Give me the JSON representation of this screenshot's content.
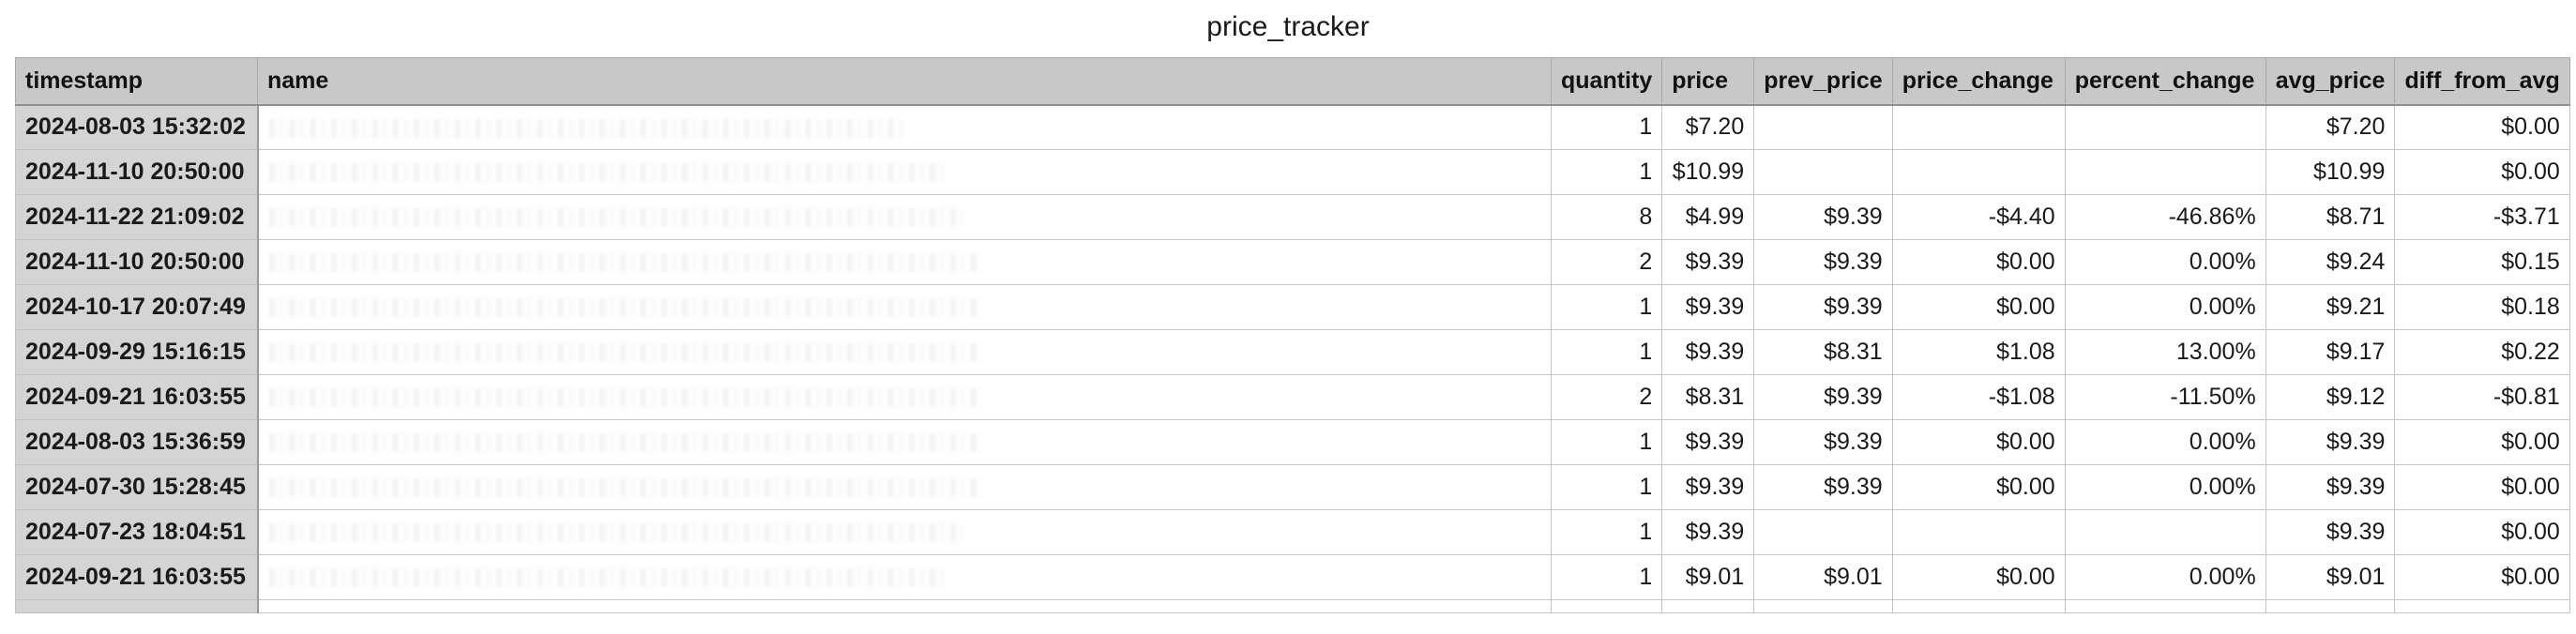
{
  "sheet": {
    "title": "price_tracker"
  },
  "table": {
    "columns": [
      "timestamp",
      "name",
      "quantity",
      "price",
      "prev_price",
      "price_change",
      "percent_change",
      "avg_price",
      "diff_from_avg"
    ],
    "rows": [
      {
        "timestamp": "2024-08-03 15:32:02",
        "name": "",
        "quantity": "1",
        "price": "$7.20",
        "prev_price": "",
        "price_change": "",
        "percent_change": "",
        "avg_price": "$7.20",
        "diff_from_avg": "$0.00"
      },
      {
        "timestamp": "2024-11-10 20:50:00",
        "name": "",
        "quantity": "1",
        "price": "$10.99",
        "prev_price": "",
        "price_change": "",
        "percent_change": "",
        "avg_price": "$10.99",
        "diff_from_avg": "$0.00"
      },
      {
        "timestamp": "2024-11-22 21:09:02",
        "name": "",
        "quantity": "8",
        "price": "$4.99",
        "prev_price": "$9.39",
        "price_change": "-$4.40",
        "percent_change": "-46.86%",
        "avg_price": "$8.71",
        "diff_from_avg": "-$3.71"
      },
      {
        "timestamp": "2024-11-10 20:50:00",
        "name": "",
        "quantity": "2",
        "price": "$9.39",
        "prev_price": "$9.39",
        "price_change": "$0.00",
        "percent_change": "0.00%",
        "avg_price": "$9.24",
        "diff_from_avg": "$0.15"
      },
      {
        "timestamp": "2024-10-17 20:07:49",
        "name": "",
        "quantity": "1",
        "price": "$9.39",
        "prev_price": "$9.39",
        "price_change": "$0.00",
        "percent_change": "0.00%",
        "avg_price": "$9.21",
        "diff_from_avg": "$0.18"
      },
      {
        "timestamp": "2024-09-29 15:16:15",
        "name": "",
        "quantity": "1",
        "price": "$9.39",
        "prev_price": "$8.31",
        "price_change": "$1.08",
        "percent_change": "13.00%",
        "avg_price": "$9.17",
        "diff_from_avg": "$0.22"
      },
      {
        "timestamp": "2024-09-21 16:03:55",
        "name": "",
        "quantity": "2",
        "price": "$8.31",
        "prev_price": "$9.39",
        "price_change": "-$1.08",
        "percent_change": "-11.50%",
        "avg_price": "$9.12",
        "diff_from_avg": "-$0.81"
      },
      {
        "timestamp": "2024-08-03 15:36:59",
        "name": "",
        "quantity": "1",
        "price": "$9.39",
        "prev_price": "$9.39",
        "price_change": "$0.00",
        "percent_change": "0.00%",
        "avg_price": "$9.39",
        "diff_from_avg": "$0.00"
      },
      {
        "timestamp": "2024-07-30 15:28:45",
        "name": "",
        "quantity": "1",
        "price": "$9.39",
        "prev_price": "$9.39",
        "price_change": "$0.00",
        "percent_change": "0.00%",
        "avg_price": "$9.39",
        "diff_from_avg": "$0.00"
      },
      {
        "timestamp": "2024-07-23 18:04:51",
        "name": "",
        "quantity": "1",
        "price": "$9.39",
        "prev_price": "",
        "price_change": "",
        "percent_change": "",
        "avg_price": "$9.39",
        "diff_from_avg": "$0.00"
      },
      {
        "timestamp": "2024-09-21 16:03:55",
        "name": "",
        "quantity": "1",
        "price": "$9.01",
        "prev_price": "$9.01",
        "price_change": "$0.00",
        "percent_change": "0.00%",
        "avg_price": "$9.01",
        "diff_from_avg": "$0.00"
      }
    ]
  }
}
